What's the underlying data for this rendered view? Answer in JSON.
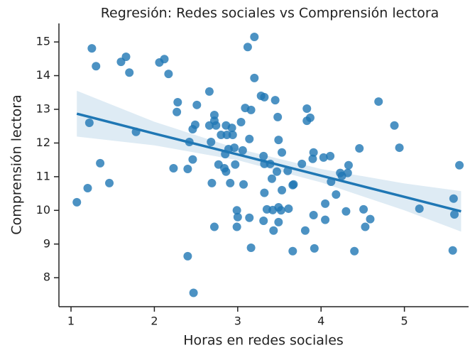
{
  "chart_data": {
    "type": "scatter",
    "title": "Regresión: Redes sociales vs Comprensión lectora",
    "x_label": "Horas en redes sociales",
    "y_label": "Comprensión lectora",
    "xlim": [
      0.855,
      5.77
    ],
    "ylim": [
      7.14,
      15.55
    ],
    "xticks": [
      1,
      2,
      3,
      4,
      5
    ],
    "yticks": [
      8,
      9,
      10,
      11,
      12,
      13,
      14,
      15
    ],
    "grid": false,
    "series": [
      {
        "color": "#1f77b4",
        "x": [
          1.07,
          1.25,
          1.3,
          1.22,
          1.2,
          1.35,
          1.46,
          1.6,
          1.66,
          1.7,
          1.78,
          2.06,
          2.12,
          2.17,
          2.28,
          2.27,
          2.23,
          2.4,
          2.4,
          2.42,
          2.46,
          2.46,
          2.49,
          2.51,
          2.47,
          2.66,
          2.66,
          2.68,
          2.72,
          2.72,
          2.74,
          2.69,
          2.72,
          2.77,
          2.8,
          2.85,
          2.86,
          2.87,
          2.86,
          2.84,
          2.89,
          2.91,
          2.93,
          2.94,
          2.96,
          2.99,
          2.99,
          3.0,
          2.97,
          3.04,
          3.06,
          3.07,
          3.09,
          3.12,
          3.14,
          3.14,
          3.16,
          3.16,
          3.2,
          3.2,
          3.28,
          3.32,
          3.31,
          3.32,
          3.32,
          3.31,
          3.35,
          3.39,
          3.41,
          3.42,
          3.43,
          3.45,
          3.48,
          3.47,
          3.49,
          3.49,
          3.49,
          3.52,
          3.53,
          3.53,
          3.6,
          3.61,
          3.66,
          3.66,
          3.67,
          3.77,
          3.81,
          3.83,
          3.83,
          3.87,
          3.9,
          3.91,
          3.91,
          3.92,
          4.03,
          4.05,
          4.05,
          4.11,
          4.12,
          4.18,
          4.23,
          4.25,
          4.32,
          4.33,
          4.3,
          4.4,
          4.46,
          4.51,
          4.53,
          4.59,
          4.69,
          4.88,
          4.94,
          5.18,
          5.58,
          5.59,
          5.6,
          5.66
        ],
        "values": [
          10.24,
          14.81,
          14.28,
          12.6,
          10.66,
          11.4,
          10.81,
          14.41,
          14.56,
          14.09,
          12.33,
          14.39,
          14.49,
          14.05,
          13.21,
          12.92,
          11.25,
          8.64,
          11.23,
          12.03,
          11.51,
          12.41,
          12.54,
          13.13,
          7.55,
          13.53,
          12.52,
          12.03,
          12.83,
          12.66,
          12.52,
          10.81,
          9.51,
          11.36,
          12.24,
          11.67,
          12.52,
          12.24,
          11.15,
          11.25,
          11.82,
          10.81,
          12.45,
          12.24,
          11.86,
          9.51,
          10.0,
          9.8,
          11.36,
          12.62,
          11.78,
          10.77,
          13.04,
          14.85,
          12.12,
          9.78,
          12.98,
          8.89,
          15.15,
          13.93,
          13.4,
          13.36,
          11.61,
          11.38,
          10.52,
          9.69,
          10.03,
          11.38,
          10.94,
          10.01,
          9.4,
          13.27,
          12.77,
          11.15,
          10.09,
          9.65,
          12.09,
          10.0,
          11.72,
          10.6,
          11.17,
          10.05,
          10.75,
          8.79,
          10.77,
          11.38,
          9.4,
          13.02,
          12.66,
          12.75,
          11.53,
          11.72,
          9.86,
          8.87,
          11.57,
          10.2,
          9.72,
          11.61,
          10.85,
          10.47,
          11.11,
          11.02,
          11.11,
          11.34,
          9.97,
          8.79,
          11.84,
          10.03,
          9.51,
          9.74,
          13.23,
          12.52,
          11.86,
          10.05,
          8.81,
          10.35,
          9.88,
          11.34
        ]
      }
    ],
    "fit": {
      "color": "#1f77b4",
      "x": [
        1.07,
        2,
        3,
        4,
        5,
        5.68
      ],
      "values": [
        12.87,
        12.28,
        11.66,
        11.03,
        10.4,
        9.97
      ],
      "upper": [
        13.55,
        12.63,
        11.83,
        11.23,
        10.8,
        10.57
      ],
      "lower": [
        12.19,
        11.93,
        11.49,
        10.83,
        10.0,
        9.37
      ]
    }
  }
}
